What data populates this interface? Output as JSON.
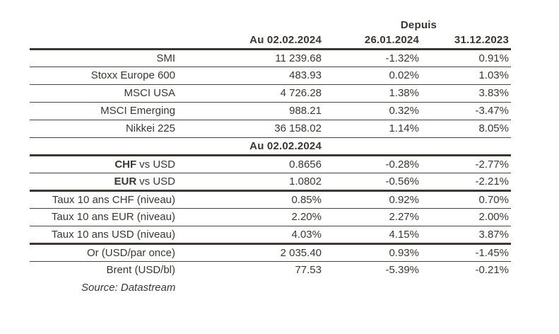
{
  "table": {
    "span_header": "Depuis",
    "col_headers": [
      "Au 02.02.2024",
      "26.01.2024",
      "31.12.2023"
    ],
    "mid_header": "Au 02.02.2024",
    "rows": [
      {
        "label": "SMI",
        "values": [
          "11 239.68",
          "-1.32%",
          "0.91%"
        ]
      },
      {
        "label": "Stoxx Europe 600",
        "values": [
          "483.93",
          "0.02%",
          "1.03%"
        ]
      },
      {
        "label": "MSCI USA",
        "values": [
          "4 726.28",
          "1.38%",
          "3.83%"
        ]
      },
      {
        "label": "MSCI Emerging",
        "values": [
          "988.21",
          "0.32%",
          "-3.47%"
        ]
      },
      {
        "label": "Nikkei 225",
        "values": [
          "36 158.02",
          "1.14%",
          "8.05%"
        ]
      },
      {
        "label_bold": "CHF",
        "label_rest": "vs USD",
        "values": [
          "0.8656",
          "-0.28%",
          "-2.77%"
        ]
      },
      {
        "label_bold": "EUR",
        "label_rest": "vs USD",
        "values": [
          "1.0802",
          "-0.56%",
          "-2.21%"
        ]
      },
      {
        "label": "Taux 10 ans CHF (niveau)",
        "values": [
          "0.85%",
          "0.92%",
          "0.70%"
        ]
      },
      {
        "label": "Taux 10 ans EUR (niveau)",
        "values": [
          "2.20%",
          "2.27%",
          "2.00%"
        ]
      },
      {
        "label": "Taux 10 ans USD (niveau)",
        "values": [
          "4.03%",
          "4.15%",
          "3.87%"
        ]
      },
      {
        "label": "Or (USD/par once)",
        "values": [
          "2 035.40",
          "0.93%",
          "-1.45%"
        ]
      },
      {
        "label": "Brent (USD/bl)",
        "values": [
          "77.53",
          "-5.39%",
          "-0.21%"
        ]
      }
    ],
    "source": "Source: Datastream",
    "colors": {
      "text": "#3b3632",
      "rule": "#3b3632",
      "background": "#ffffff"
    }
  }
}
